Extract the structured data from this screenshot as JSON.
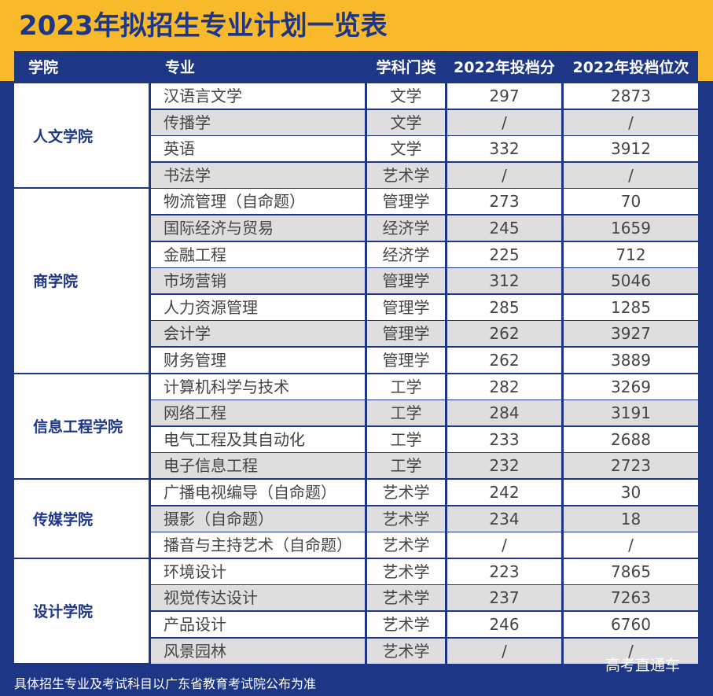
{
  "title": "2023年拟招生专业计划一览表",
  "headers": {
    "college": "学院",
    "major": "专业",
    "category": "学科门类",
    "score": "2022年投档分",
    "rank": "2022年投档位次"
  },
  "colleges": [
    {
      "name": "人文学院",
      "rows": [
        {
          "major": "汉语言文学",
          "category": "文学",
          "score": "297",
          "rank": "2873"
        },
        {
          "major": "传播学",
          "category": "文学",
          "score": "/",
          "rank": "/"
        },
        {
          "major": "英语",
          "category": "文学",
          "score": "332",
          "rank": "3912"
        },
        {
          "major": "书法学",
          "category": "艺术学",
          "score": "/",
          "rank": "/"
        }
      ]
    },
    {
      "name": "商学院",
      "rows": [
        {
          "major": "物流管理（自命题）",
          "category": "管理学",
          "score": "273",
          "rank": "70"
        },
        {
          "major": "国际经济与贸易",
          "category": "经济学",
          "score": "245",
          "rank": "1659"
        },
        {
          "major": "金融工程",
          "category": "经济学",
          "score": "225",
          "rank": "712"
        },
        {
          "major": "市场营销",
          "category": "管理学",
          "score": "312",
          "rank": "5046"
        },
        {
          "major": "人力资源管理",
          "category": "管理学",
          "score": "285",
          "rank": "1285"
        },
        {
          "major": "会计学",
          "category": "管理学",
          "score": "262",
          "rank": "3927"
        },
        {
          "major": "财务管理",
          "category": "管理学",
          "score": "262",
          "rank": "3889"
        }
      ]
    },
    {
      "name": "信息工程学院",
      "rows": [
        {
          "major": "计算机科学与技术",
          "category": "工学",
          "score": "282",
          "rank": "3269"
        },
        {
          "major": "网络工程",
          "category": "工学",
          "score": "284",
          "rank": "3191"
        },
        {
          "major": "电气工程及其自动化",
          "category": "工学",
          "score": "233",
          "rank": "2688"
        },
        {
          "major": "电子信息工程",
          "category": "工学",
          "score": "232",
          "rank": "2723"
        }
      ]
    },
    {
      "name": "传媒学院",
      "rows": [
        {
          "major": "广播电视编导（自命题）",
          "category": "艺术学",
          "score": "242",
          "rank": "30"
        },
        {
          "major": "摄影（自命题）",
          "category": "艺术学",
          "score": "234",
          "rank": "18"
        },
        {
          "major": "播音与主持艺术（自命题）",
          "category": "艺术学",
          "score": "/",
          "rank": "/"
        }
      ]
    },
    {
      "name": "设计学院",
      "rows": [
        {
          "major": "环境设计",
          "category": "艺术学",
          "score": "223",
          "rank": "7865"
        },
        {
          "major": "视觉传达设计",
          "category": "艺术学",
          "score": "237",
          "rank": "7263"
        },
        {
          "major": "产品设计",
          "category": "艺术学",
          "score": "246",
          "rank": "6760"
        },
        {
          "major": "风景园林",
          "category": "艺术学",
          "score": "/",
          "rank": "/"
        }
      ]
    }
  ],
  "footnote": "具体招生专业及考试科目以广东省教育考试院公布为准",
  "watermark": "高考直通车",
  "colors": {
    "navy": "#1e3686",
    "gold": "#f8ba2a",
    "gray_row": "#dedede",
    "white_row": "#ffffff"
  }
}
